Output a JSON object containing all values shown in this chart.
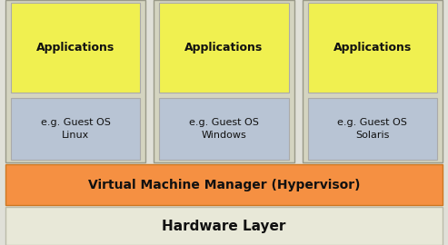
{
  "background_color": "#e0e0d8",
  "vm_columns": [
    {
      "app_label": "Applications",
      "os_label": "e.g. Guest OS\nLinux"
    },
    {
      "app_label": "Applications",
      "os_label": "e.g. Guest OS\nWindows"
    },
    {
      "app_label": "Applications",
      "os_label": "e.g. Guest OS\nSolaris"
    }
  ],
  "vm_bg_color": "#d4d4c0",
  "vm_border_color": "#999988",
  "app_box_color": "#f0f050",
  "app_box_border": "#aaaaaa",
  "app_text_color": "#111111",
  "app_fontsize": 9,
  "app_fontweight": "bold",
  "os_box_color": "#b8c4d4",
  "os_box_border": "#aaaaaa",
  "os_text_color": "#111111",
  "os_fontsize": 8,
  "hypervisor_label": "Virtual Machine Manager (Hypervisor)",
  "hypervisor_color": "#f59042",
  "hypervisor_border": "#cc7722",
  "hypervisor_text_color": "#111111",
  "hypervisor_fontsize": 10,
  "hardware_label": "Hardware Layer",
  "hardware_color": "#e8e8d8",
  "hardware_border": "#bbbbaa",
  "hardware_text_color": "#111111",
  "hardware_fontsize": 11,
  "fig_width": 4.93,
  "fig_height": 2.7,
  "dpi": 100
}
